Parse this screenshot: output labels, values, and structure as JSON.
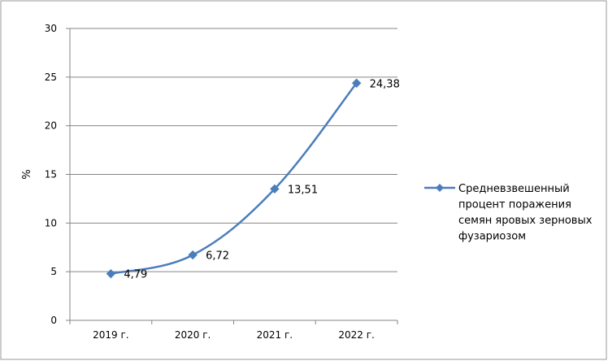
{
  "chart_data": {
    "type": "line",
    "categories": [
      "2019 г.",
      "2020 г.",
      "2021 г.",
      "2022 г."
    ],
    "series": [
      {
        "name": "Средневзвешенный процент поражения семян яровых зерновых фузариозом",
        "values": [
          4.79,
          6.72,
          13.51,
          24.38
        ],
        "labels": [
          "4,79",
          "6,72",
          "13,51",
          "24,38"
        ],
        "color": "#4a7ebb",
        "marker": "diamond"
      }
    ],
    "ylabel": "%",
    "xlabel": "",
    "ylim": [
      0,
      30
    ],
    "yticks": [
      0,
      5,
      10,
      15,
      20,
      25,
      30
    ],
    "grid": true,
    "legend": "right"
  },
  "legend": {
    "lines": [
      "Средневзвешенный",
      "процент поражения",
      "семян яровых зерновых",
      "фузариозом"
    ]
  }
}
